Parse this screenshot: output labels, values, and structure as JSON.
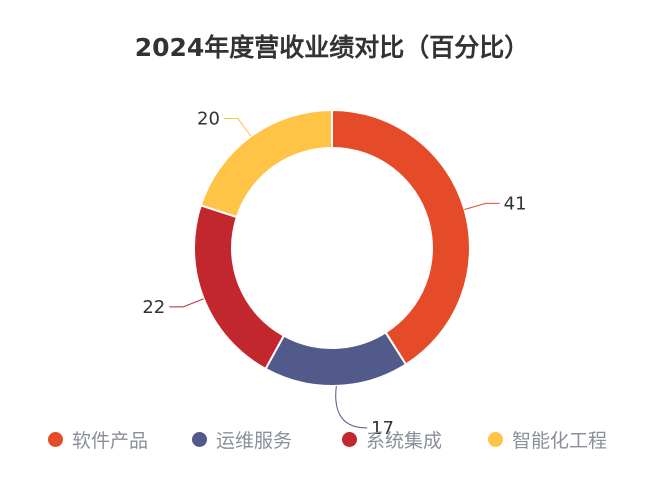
{
  "chart_data": {
    "type": "pie",
    "subtype": "donut",
    "title": "2024年度营收业绩对比（百分比）",
    "categories": [
      "软件产品",
      "运维服务",
      "系统集成",
      "智能化工程"
    ],
    "values": [
      41,
      17,
      22,
      20
    ],
    "colors": [
      "#e54b28",
      "#525a8c",
      "#c1272d",
      "#ffc445"
    ],
    "legend_position": "bottom",
    "labels_outside": true
  }
}
